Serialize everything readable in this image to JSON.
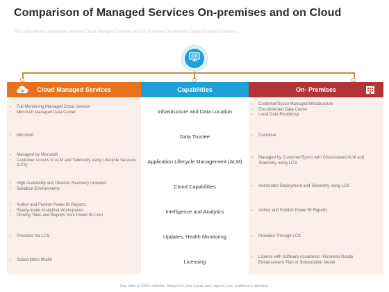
{
  "title": "Comparison of Managed Services On-premises and on Cloud",
  "subtitle": "This slide shows comparison between Cloud Managed Services and On Premises Services for Digital Payment Solutions",
  "hub": {
    "icon": "monitor-icon"
  },
  "colors": {
    "cloud": "#e8731f",
    "capabilities": "#1d9fd8",
    "onprem": "#b23535",
    "connector": "#c98a4a",
    "panel": "#fbf0e9"
  },
  "headers": {
    "cloud": "Cloud Managed Services",
    "capabilities": "Capabilities",
    "onprem": "On- Premises"
  },
  "rows": [
    {
      "cloud": [
        "Full Monitoring Managed Cloud Service",
        "Microsoft Managed Data Center"
      ],
      "capability": "Infrastructure and Data Location",
      "onprem": [
        "Customer/Sysco Managed Infrastructure",
        "Disconnected Data Center",
        "Local Data Residency"
      ]
    },
    {
      "cloud": [
        "Microsoft"
      ],
      "capability": "Data Trustee",
      "onprem": [
        "Customer"
      ]
    },
    {
      "cloud": [
        "Managed by Microsoft",
        "Customer Access to ALM and Telemetry using Lifecycle Services (LCS)"
      ],
      "capability": "Application Lifecycle Management (ALM)",
      "onprem": [
        "Managed by Customer/Sysco with Cloud-based ALM and Telemetry using LCS"
      ]
    },
    {
      "cloud": [
        "High Availability and Disaster Recovery Included",
        "Sandbox Environments"
      ],
      "capability": "Cloud Capabilities",
      "onprem": [
        "Automated Deployment and Telemetry using LCS"
      ]
    },
    {
      "cloud": [
        "Author and Publish Power BI Reports",
        "Ready-made Analytical Workspaces",
        "Pinning Titles and Reports from Power BI.Com"
      ],
      "capability": "Intelligence and Analytics",
      "onprem": [
        "Author and Publish Power BI Reports"
      ]
    },
    {
      "cloud": [
        "Provided Via LCS"
      ],
      "capability": "Updates, Health Monitoring",
      "onprem": [
        "Provided Through LCS"
      ]
    },
    {
      "cloud": [
        "Subscription Model"
      ],
      "capability": "Licensing",
      "onprem": [
        "License with Software Assurance / Business Ready Enhancement Plan or Subscription Model"
      ]
    }
  ],
  "footer": "This slide is 100% editable. Adapt it to your needs and capture your audience's attention."
}
